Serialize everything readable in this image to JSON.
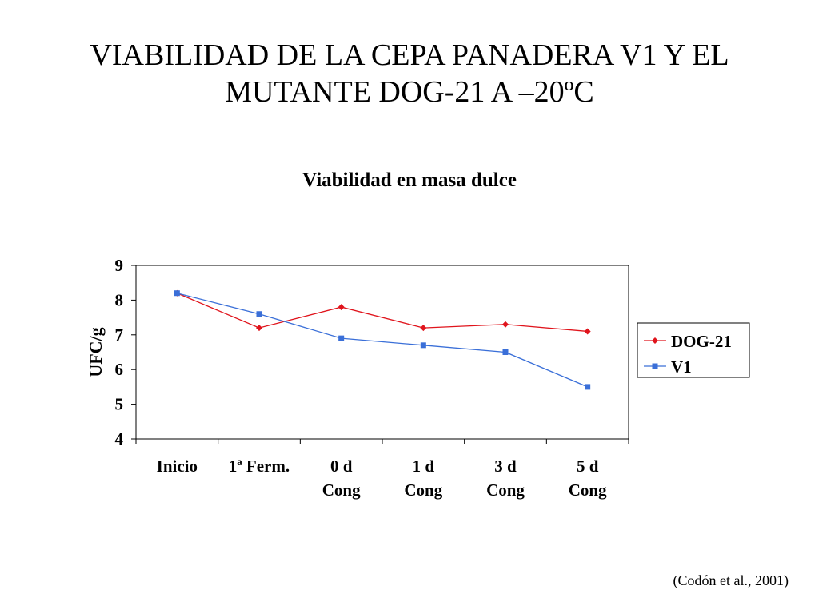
{
  "slide": {
    "title_line1": "VIABILIDAD DE LA CEPA PANADERA V1 Y EL",
    "title_line2": "MUTANTE DOG-21 A –20ºC",
    "citation": "(Codón et al., 2001)"
  },
  "chart_data": {
    "type": "line",
    "title": "Viabilidad en masa dulce",
    "xlabel": "",
    "ylabel": "UFC/g",
    "ylim": [
      4,
      9
    ],
    "yticks": [
      4,
      5,
      6,
      7,
      8,
      9
    ],
    "categories": [
      [
        "Inicio"
      ],
      [
        "1ª Ferm."
      ],
      [
        "0 d",
        "Cong"
      ],
      [
        "1 d",
        "Cong"
      ],
      [
        "3 d",
        "Cong"
      ],
      [
        "5 d",
        "Cong"
      ]
    ],
    "series": [
      {
        "name": "DOG-21",
        "color": "#e0141c",
        "marker": "diamond",
        "values": [
          8.2,
          7.2,
          7.8,
          7.2,
          7.3,
          7.1
        ]
      },
      {
        "name": "V1",
        "color": "#3a6fd8",
        "marker": "square",
        "values": [
          8.2,
          7.6,
          6.9,
          6.7,
          6.5,
          5.5
        ]
      }
    ],
    "grid": false,
    "legend_position": "right"
  }
}
